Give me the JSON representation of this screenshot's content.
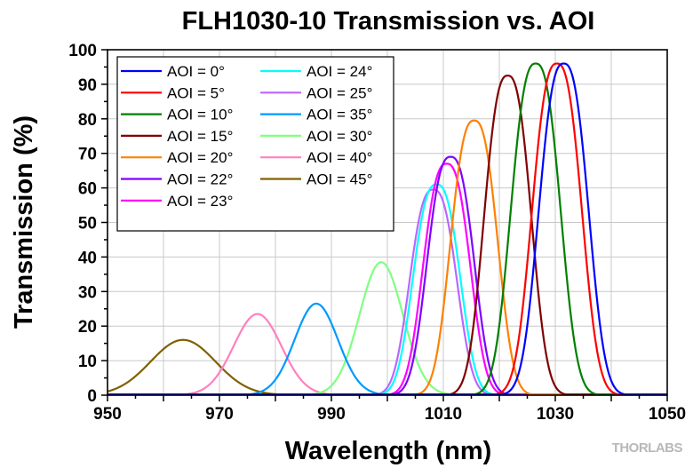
{
  "chart_data": {
    "type": "line",
    "title": "FLH1030-10 Transmission vs. AOI",
    "xlabel": "Wavelength (nm)",
    "ylabel": "Transmission (%)",
    "xlim": [
      950,
      1050
    ],
    "ylim": [
      0,
      100
    ],
    "xticks": [
      950,
      970,
      990,
      1010,
      1030,
      1050
    ],
    "yticks": [
      0,
      10,
      20,
      30,
      40,
      50,
      60,
      70,
      80,
      90,
      100
    ],
    "grid": true,
    "legend_position": "top-left",
    "series": [
      {
        "name": "AOI = 0°",
        "color": "#0000ff",
        "center": 1031.5,
        "peak": 96,
        "fwhm": 10
      },
      {
        "name": "AOI = 5°",
        "color": "#ff0000",
        "center": 1030.3,
        "peak": 96,
        "fwhm": 10
      },
      {
        "name": "AOI = 10°",
        "color": "#008000",
        "center": 1026.5,
        "peak": 96,
        "fwhm": 10
      },
      {
        "name": "AOI = 15°",
        "color": "#800000",
        "center": 1021.5,
        "peak": 92.5,
        "fwhm": 9.5
      },
      {
        "name": "AOI = 20°",
        "color": "#ff8000",
        "center": 1015.5,
        "peak": 79.5,
        "fwhm": 9.5
      },
      {
        "name": "AOI = 22°",
        "color": "#8000ff",
        "center": 1011.3,
        "peak": 69,
        "fwhm": 9.5
      },
      {
        "name": "AOI = 23°",
        "color": "#ff00ff",
        "center": 1010.6,
        "peak": 67,
        "fwhm": 9.5
      },
      {
        "name": "AOI = 24°",
        "color": "#00ffff",
        "center": 1008.8,
        "peak": 61,
        "fwhm": 9.5
      },
      {
        "name": "AOI = 25°",
        "color": "#bb66ff",
        "center": 1008.2,
        "peak": 59.5,
        "fwhm": 9.5
      },
      {
        "name": "AOI = 35°",
        "color": "#0099ff",
        "center": 987.3,
        "peak": 26.5,
        "fwhm": 10
      },
      {
        "name": "AOI = 30°",
        "color": "#80ff80",
        "center": 998.9,
        "peak": 38.5,
        "fwhm": 10
      },
      {
        "name": "AOI = 40°",
        "color": "#ff80c0",
        "center": 976.8,
        "peak": 23.5,
        "fwhm": 11
      },
      {
        "name": "AOI = 45°",
        "color": "#806000",
        "center": 963.5,
        "peak": 16,
        "fwhm": 15
      }
    ],
    "legend_columns": [
      [
        "AOI = 0°",
        "AOI = 5°",
        "AOI = 10°",
        "AOI = 15°",
        "AOI = 20°",
        "AOI = 22°",
        "AOI = 23°"
      ],
      [
        "AOI = 24°",
        "AOI = 25°",
        "AOI = 35°",
        "AOI = 30°",
        "AOI = 40°",
        "AOI = 45°"
      ]
    ]
  },
  "watermark": "THORLABS"
}
